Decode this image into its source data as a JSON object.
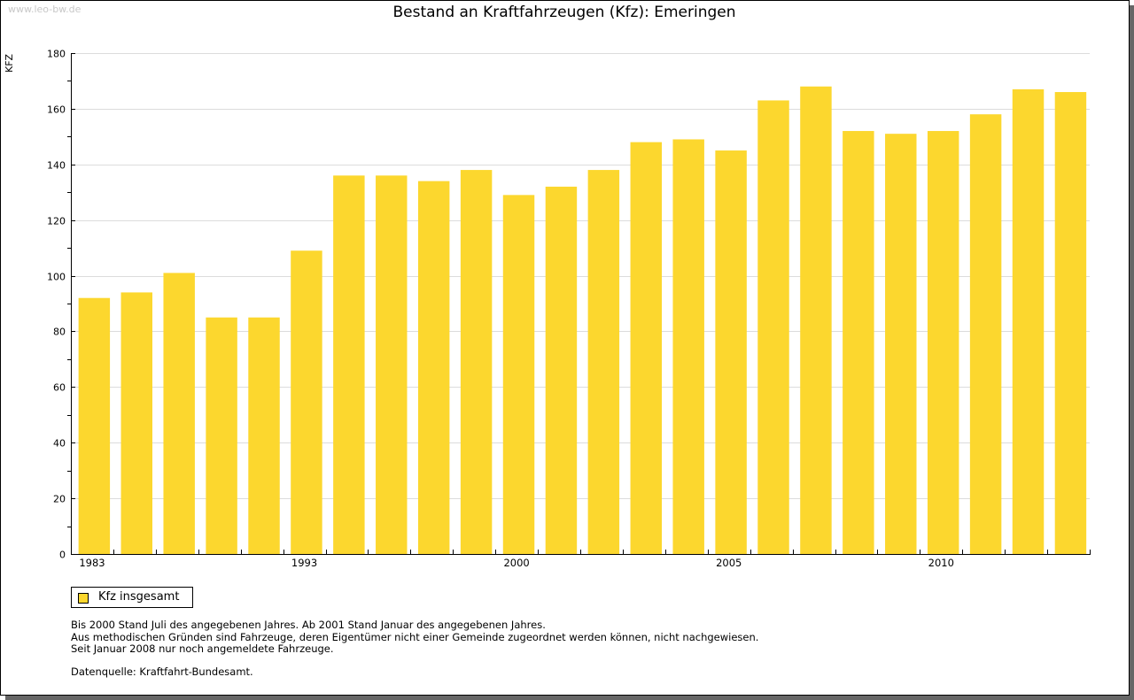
{
  "watermark": "www.leo-bw.de",
  "chart_data": {
    "type": "bar",
    "title": "Bestand an Kraftfahrzeugen (Kfz): Emeringen",
    "xlabel": "",
    "ylabel": "KFZ",
    "ylim": [
      0,
      180
    ],
    "yticks": [
      0,
      20,
      40,
      60,
      80,
      100,
      120,
      140,
      160,
      180
    ],
    "grid": true,
    "categories": [
      "1983",
      "",
      "",
      "",
      "",
      "1993",
      "",
      "",
      "",
      "",
      "2000",
      "",
      "",
      "",
      "",
      "2005",
      "",
      "",
      "",
      "",
      "2010",
      "",
      "",
      ""
    ],
    "series": [
      {
        "name": "Kfz insgesamt",
        "color": "#FCD72E",
        "values": [
          92,
          94,
          101,
          85,
          85,
          109,
          136,
          136,
          134,
          138,
          129,
          132,
          138,
          148,
          149,
          145,
          163,
          168,
          152,
          151,
          152,
          158,
          167,
          166
        ]
      }
    ],
    "legend": "bottom-left"
  },
  "legend": {
    "label": "Kfz insgesamt"
  },
  "notes": [
    "Bis 2000 Stand Juli des angegebenen Jahres. Ab 2001 Stand Januar des angegebenen Jahres.",
    "Aus methodischen Gründen sind Fahrzeuge, deren Eigentümer nicht einer Gemeinde zugeordnet werden können, nicht nachgewiesen.",
    "Seit Januar 2008 nur noch angemeldete Fahrzeuge."
  ],
  "source": "Datenquelle: Kraftfahrt-Bundesamt."
}
